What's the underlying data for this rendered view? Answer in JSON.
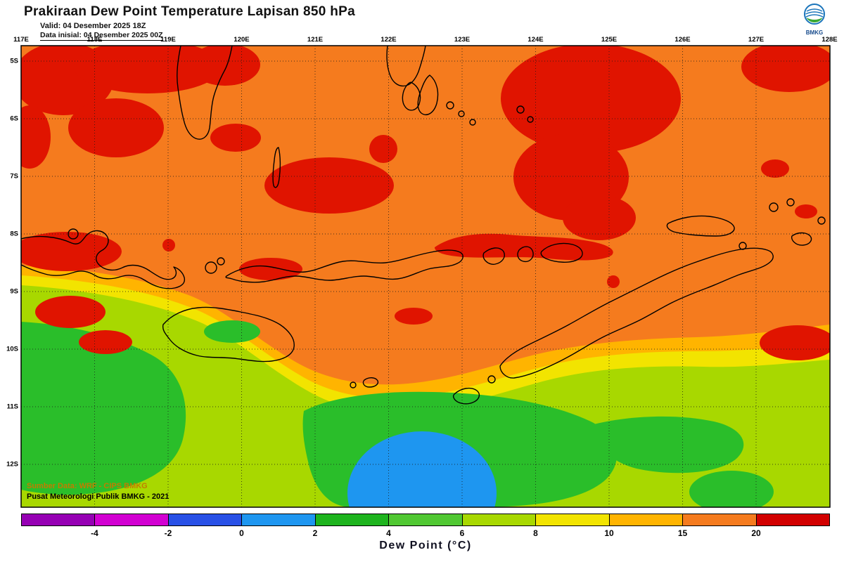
{
  "header": {
    "title": "Prakiraan Dew Point Temperature Lapisan 850 hPa",
    "valid": "Valid: 04 Desember 2025 18Z",
    "init": "Data inisial: 04 Desember 2025 00Z",
    "logo_text": "BMKG"
  },
  "map": {
    "lon_labels": [
      "117E",
      "118E",
      "119E",
      "120E",
      "121E",
      "122E",
      "123E",
      "124E",
      "125E",
      "126E",
      "127E",
      "128E"
    ],
    "lat_labels": [
      "5S",
      "6S",
      "7S",
      "8S",
      "9S",
      "10S",
      "11S",
      "12S"
    ],
    "credit1": "Sumber Data: WRF - CIPS BMKG",
    "credit2": "Pusat Meteorologi Publik BMKG - 2021"
  },
  "map_colors": {
    "background": "#f57b1e",
    "red": "#e01400",
    "amber": "#ffb400",
    "yellow": "#f2e400",
    "yellow_green": "#a8d800",
    "green": "#2abe2a",
    "blue": "#1e96f0",
    "coastline": "#000000"
  },
  "colorbar": {
    "caption": "Dew Point (°C)",
    "tick_labels": [
      "-4",
      "-2",
      "0",
      "2",
      "4",
      "6",
      "8",
      "10",
      "15",
      "20"
    ],
    "segment_colors": [
      "#9600b4",
      "#d200d2",
      "#2850e6",
      "#1e96f0",
      "#1eb41e",
      "#50c832",
      "#a8d800",
      "#f2e400",
      "#ffb400",
      "#f57b1e",
      "#d20000"
    ]
  }
}
